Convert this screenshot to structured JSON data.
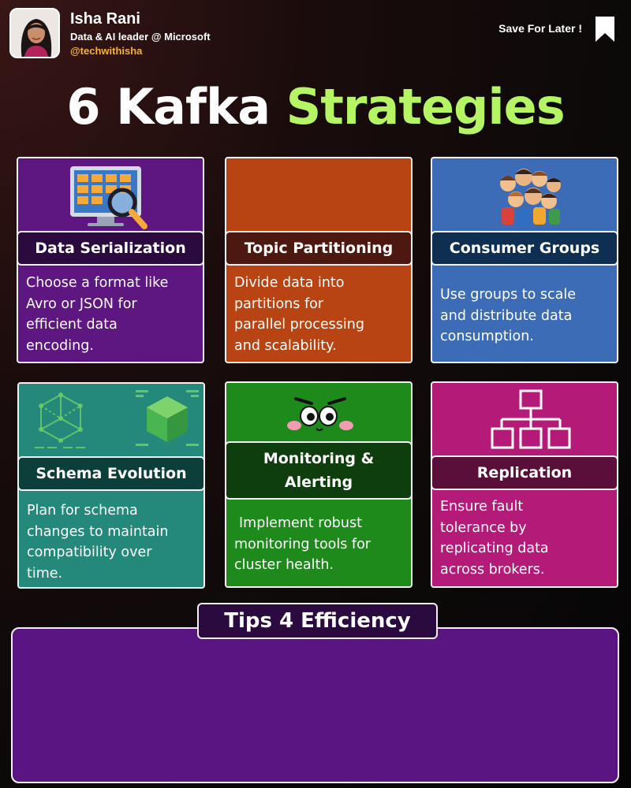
{
  "header": {
    "name": "Isha Rani",
    "role": "Data & AI leader @ Microsoft",
    "handle": "@techwithisha",
    "save_label": "Save For Later !"
  },
  "title": {
    "part1": "6 Kafka ",
    "part2": "Strategies"
  },
  "colors": {
    "title_accent": "#b5f563",
    "handle": "#f2b33d",
    "serialization": "#5e1680",
    "partitioning": "#b94413",
    "consumer_groups": "#3d6cb6",
    "schema_evolution": "#24897a",
    "monitoring": "#1e8a1c",
    "replication": "#b41a77",
    "tips_panel": "#5b1583"
  },
  "cards": [
    {
      "title": "Data Serialization",
      "lines": [
        "Choose a format like",
        "Avro or JSON for",
        "efficient data",
        "encoding."
      ],
      "icon": "magnifier-table-icon"
    },
    {
      "title": "Topic Partitioning",
      "lines": [
        "Divide data into",
        "partitions for",
        "parallel processing",
        "and scalability."
      ],
      "icon": ""
    },
    {
      "title": "Consumer Groups",
      "lines": [
        "Use groups to scale",
        "and distribute data",
        "consumption."
      ],
      "icon": "group-of-people-icon"
    },
    {
      "title": "Schema Evolution",
      "lines": [
        "Plan for schema",
        "changes to maintain",
        "compatibility over",
        "time."
      ],
      "icon": "cube-network-icon"
    },
    {
      "title_lines": [
        "Monitoring &",
        "Alerting"
      ],
      "lines": [
        "Implement robust",
        "monitoring tools for",
        "cluster health."
      ],
      "icon": "googly-eyes-face-icon"
    },
    {
      "title": "Replication",
      "lines": [
        "Ensure fault",
        "tolerance by",
        "replicating data",
        "across brokers."
      ],
      "icon": "hierarchy-tree-icon"
    }
  ],
  "tips": {
    "heading": "Tips 4 Efficiency"
  }
}
